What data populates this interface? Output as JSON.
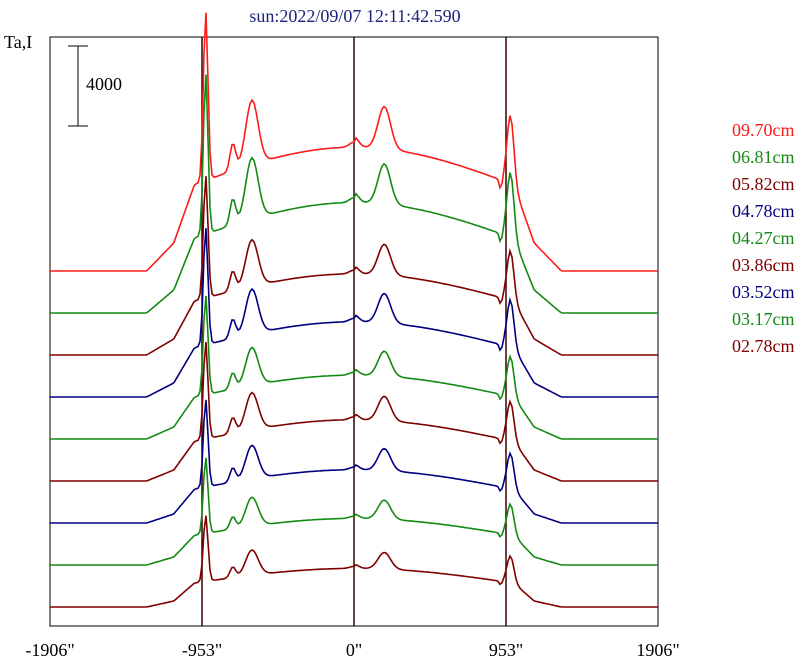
{
  "chart_data": {
    "type": "line",
    "title": "sun:2022/09/07 12:11:42.590",
    "ylabel": "Ta,I",
    "scale_bar_label": "4000",
    "x_ticks": [
      -1906,
      -953,
      0,
      953,
      1906
    ],
    "x_tick_labels": [
      "-1906\"",
      "-953\"",
      "0\"",
      "953\"",
      "1906\""
    ],
    "xlim": [
      -1906,
      1906
    ],
    "vertical_lines": [
      -953,
      0,
      953
    ],
    "scale_bar_value": 4000,
    "legend_placement": "right",
    "offset_step": 2100,
    "series": [
      {
        "name": "09.70cm",
        "color": "#ff1a1a",
        "peak": 13000,
        "low": 2800
      },
      {
        "name": "06.81cm",
        "color": "#138a13",
        "peak": 12000,
        "low": 2300
      },
      {
        "name": "05.82cm",
        "color": "#800000",
        "peak": 9000,
        "low": 1600
      },
      {
        "name": "04.78cm",
        "color": "#000080",
        "peak": 8500,
        "low": 1400
      },
      {
        "name": "04.27cm",
        "color": "#138a13",
        "peak": 7200,
        "low": 1200
      },
      {
        "name": "03.86cm",
        "color": "#800000",
        "peak": 7000,
        "low": 1100
      },
      {
        "name": "03.52cm",
        "color": "#000080",
        "peak": 6200,
        "low": 900
      },
      {
        "name": "03.17cm",
        "color": "#138a13",
        "peak": 5400,
        "low": 800
      },
      {
        "name": "02.78cm",
        "color": "#800000",
        "peak": 4600,
        "low": 600
      }
    ]
  }
}
